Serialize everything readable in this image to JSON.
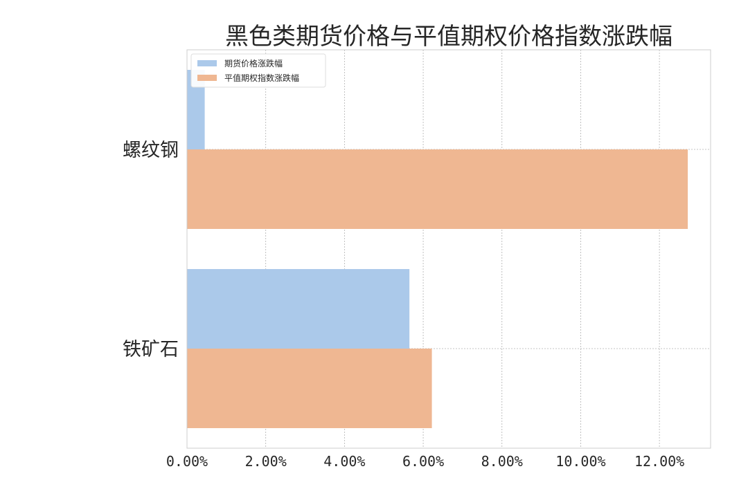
{
  "chart_data": {
    "type": "bar",
    "orientation": "horizontal",
    "title": "黑色类期货价格与平值期权价格指数涨跌幅",
    "xlabel": "",
    "ylabel": "",
    "categories": [
      "螺纹钢",
      "铁矿石"
    ],
    "series": [
      {
        "name": "期货价格涨跌幅",
        "values": [
          0.45,
          5.65
        ],
        "color": "#abc9ea"
      },
      {
        "name": "平值期权指数涨跌幅",
        "values": [
          12.72,
          6.22
        ],
        "color": "#efb792"
      }
    ],
    "xlim": [
      0,
      13.3
    ],
    "xticks": [
      0,
      2,
      4,
      6,
      8,
      10,
      12
    ],
    "xtick_labels": [
      "0.00%",
      "2.00%",
      "4.00%",
      "6.00%",
      "8.00%",
      "10.00%",
      "12.00%"
    ],
    "grid": true,
    "legend_position": "upper-left",
    "colors": {
      "grid": "#b0b0b0",
      "axes_edge": "#cccccc",
      "text": "#262626"
    }
  }
}
